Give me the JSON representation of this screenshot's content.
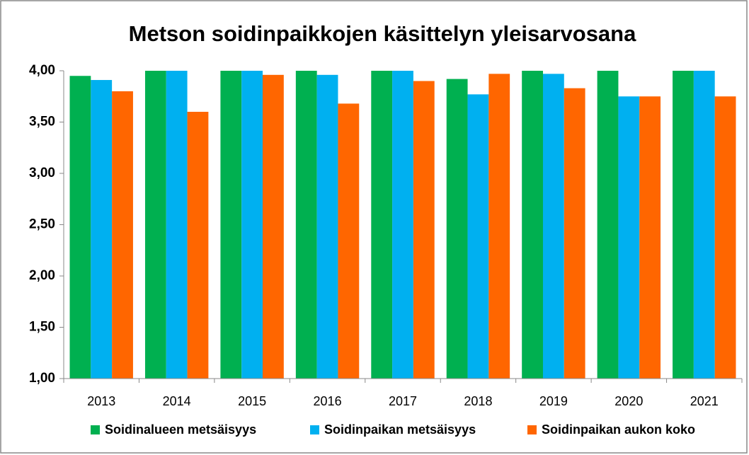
{
  "chart_data": {
    "type": "bar",
    "title": "Metson soidinpaikkojen käsittelyn yleisarvosana",
    "categories": [
      "2013",
      "2014",
      "2015",
      "2016",
      "2017",
      "2018",
      "2019",
      "2020",
      "2021"
    ],
    "series": [
      {
        "name": "Soidinalueen metsäisyys",
        "color": "#00b050",
        "values": [
          3.95,
          4.0,
          4.0,
          4.0,
          4.0,
          3.92,
          4.0,
          4.0,
          4.0
        ]
      },
      {
        "name": "Soidinpaikan metsäisyys",
        "color": "#00b0f0",
        "values": [
          3.91,
          4.0,
          4.0,
          3.96,
          4.0,
          3.77,
          3.97,
          3.75,
          4.0
        ]
      },
      {
        "name": "Soidinpaikan aukon koko",
        "color": "#ff6600",
        "values": [
          3.8,
          3.6,
          3.96,
          3.68,
          3.9,
          3.97,
          3.83,
          3.75,
          3.75
        ]
      }
    ],
    "ylim": [
      1,
      4
    ],
    "yticks": [
      {
        "value": 1,
        "label": "1,00"
      },
      {
        "value": 1.5,
        "label": "1,50"
      },
      {
        "value": 2,
        "label": "2,00"
      },
      {
        "value": 2.5,
        "label": "2,50"
      },
      {
        "value": 3,
        "label": "3,00"
      },
      {
        "value": 3.5,
        "label": "3,50"
      },
      {
        "value": 4,
        "label": "4,00"
      }
    ],
    "legend": "bottom"
  }
}
